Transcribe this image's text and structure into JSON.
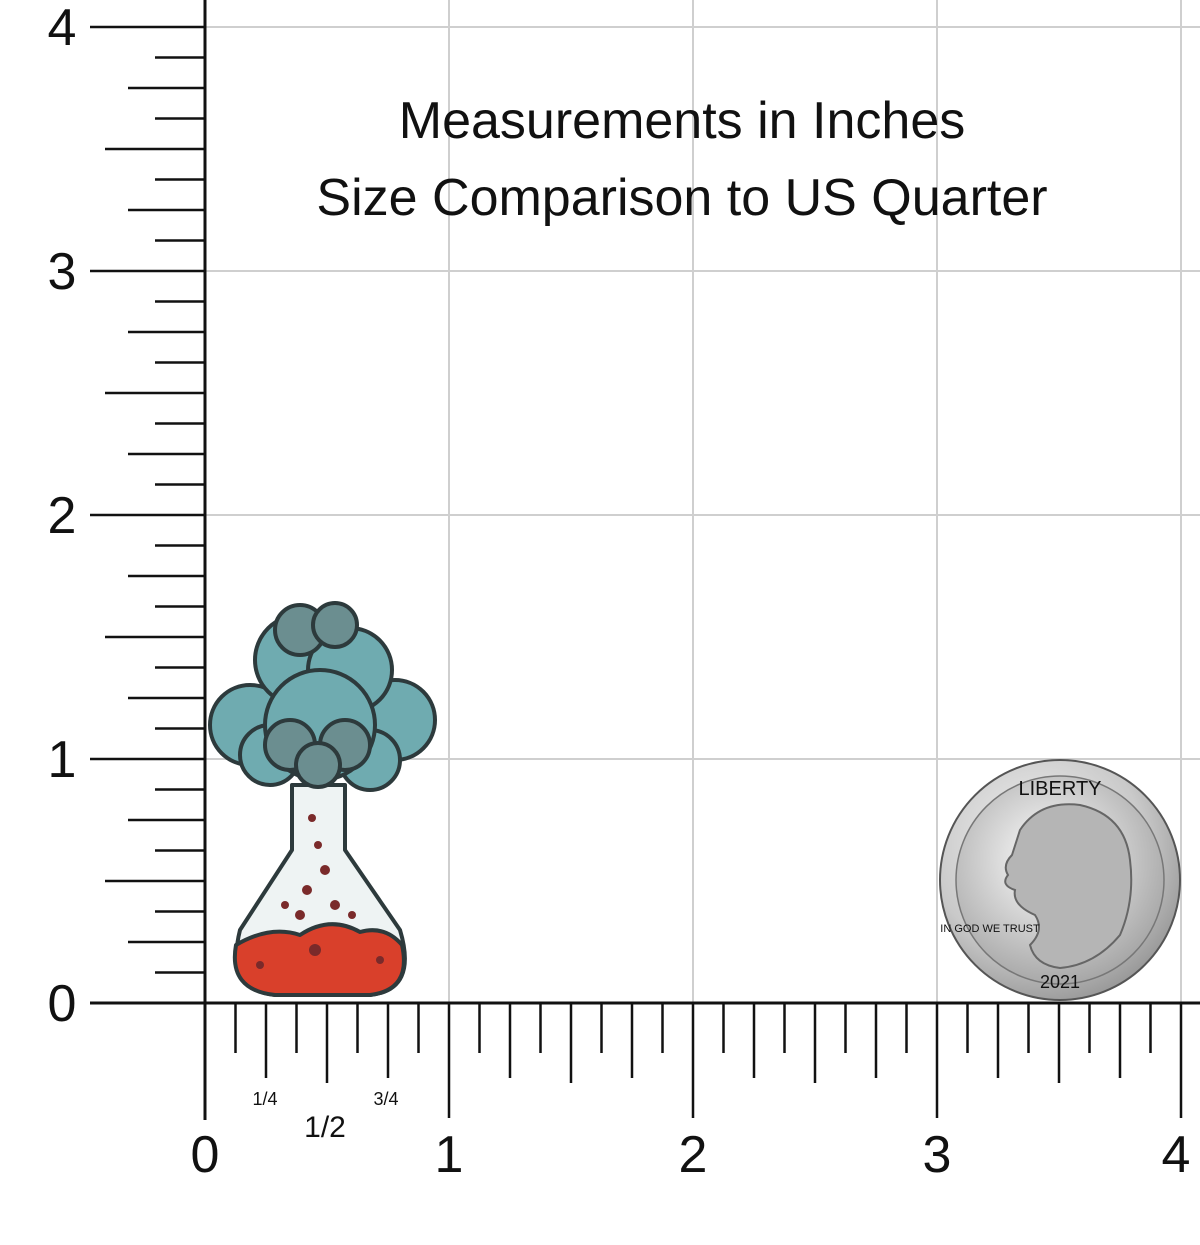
{
  "header": {
    "title": "Measurements in Inches",
    "subtitle": "Size Comparison to US Quarter"
  },
  "ruler": {
    "x_labels": [
      "0",
      "1",
      "2",
      "3",
      "4"
    ],
    "y_labels": [
      "0",
      "1",
      "2",
      "3",
      "4"
    ],
    "fractions": [
      "1/4",
      "1/2",
      "3/4"
    ]
  },
  "coin": {
    "top_text": "LIBERTY",
    "motto": "IN GOD WE TRUST",
    "year": "2021"
  }
}
